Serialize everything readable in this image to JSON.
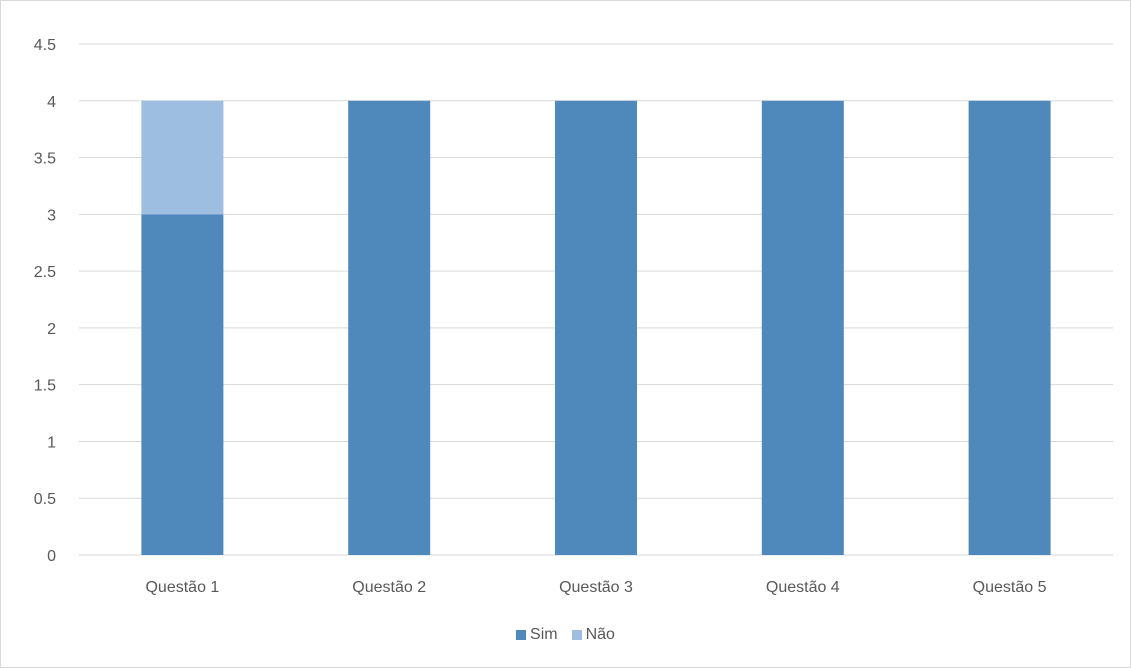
{
  "chart_data": {
    "type": "bar",
    "stacked": true,
    "categories": [
      "Questão 1",
      "Questão 2",
      "Questão 3",
      "Questão 4",
      "Questão 5"
    ],
    "series": [
      {
        "name": "Sim",
        "values": [
          3,
          4,
          4,
          4,
          4
        ],
        "color": "#4f88bb"
      },
      {
        "name": "Não",
        "values": [
          1,
          0,
          0,
          0,
          0
        ],
        "color": "#9dbde1"
      }
    ],
    "ylim": [
      0,
      4.5
    ],
    "yticks": [
      "0",
      "0.5",
      "1",
      "1.5",
      "2",
      "2.5",
      "3",
      "3.5",
      "4",
      "4.5"
    ],
    "grid": true,
    "legend_position": "bottom"
  }
}
